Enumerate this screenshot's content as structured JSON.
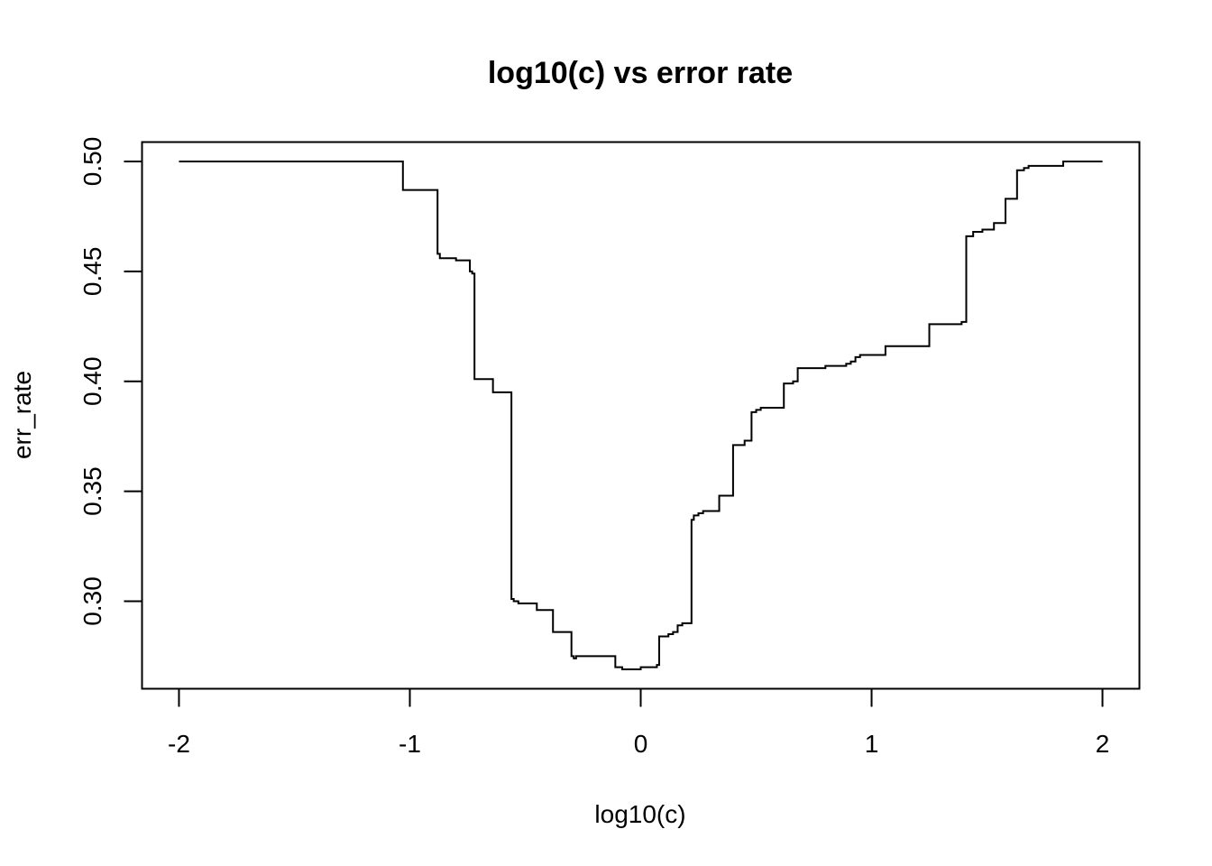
{
  "chart_data": {
    "type": "line",
    "style": "step",
    "title": "log10(c) vs error rate",
    "xlabel": "log10(c)",
    "ylabel": "err_rate",
    "xlim": [
      -2.16,
      2.16
    ],
    "ylim": [
      0.2602,
      0.5088
    ],
    "x_ticks": [
      -2,
      -1,
      0,
      1,
      2
    ],
    "x_tick_labels": [
      "-2",
      "-1",
      "0",
      "1",
      "2"
    ],
    "y_ticks": [
      0.3,
      0.35,
      0.4,
      0.45,
      0.5
    ],
    "y_tick_labels": [
      "0.30",
      "0.35",
      "0.40",
      "0.45",
      "0.50"
    ],
    "grid": false,
    "line_color": "#000000",
    "series": [
      {
        "x": [
          -2.0,
          -1.03,
          -0.88,
          -0.87,
          -0.8,
          -0.74,
          -0.73,
          -0.72,
          -0.64,
          -0.56,
          -0.55,
          -0.53,
          -0.45,
          -0.38,
          -0.3,
          -0.29,
          -0.28,
          -0.26,
          -0.11,
          -0.1,
          -0.08,
          0.0,
          0.01,
          0.07,
          0.08,
          0.12,
          0.14,
          0.16,
          0.18,
          0.22,
          0.23,
          0.25,
          0.27,
          0.34,
          0.4,
          0.45,
          0.48,
          0.5,
          0.52,
          0.55,
          0.62,
          0.63,
          0.66,
          0.68,
          0.73,
          0.8,
          0.89,
          0.91,
          0.93,
          0.95,
          1.06,
          1.25,
          1.39,
          1.41,
          1.44,
          1.48,
          1.53,
          1.58,
          1.63,
          1.66,
          1.68,
          1.7,
          1.75,
          1.83,
          2.0
        ],
        "y": [
          0.5,
          0.487,
          0.458,
          0.456,
          0.455,
          0.45,
          0.449,
          0.401,
          0.395,
          0.301,
          0.3,
          0.299,
          0.296,
          0.286,
          0.275,
          0.274,
          0.275,
          0.275,
          0.27,
          0.27,
          0.269,
          0.27,
          0.27,
          0.271,
          0.284,
          0.285,
          0.286,
          0.289,
          0.29,
          0.337,
          0.339,
          0.34,
          0.341,
          0.348,
          0.371,
          0.373,
          0.386,
          0.387,
          0.388,
          0.388,
          0.399,
          0.399,
          0.4,
          0.406,
          0.406,
          0.407,
          0.408,
          0.409,
          0.411,
          0.412,
          0.416,
          0.426,
          0.427,
          0.466,
          0.468,
          0.469,
          0.472,
          0.483,
          0.496,
          0.497,
          0.498,
          0.498,
          0.498,
          0.5,
          0.5
        ]
      }
    ]
  }
}
